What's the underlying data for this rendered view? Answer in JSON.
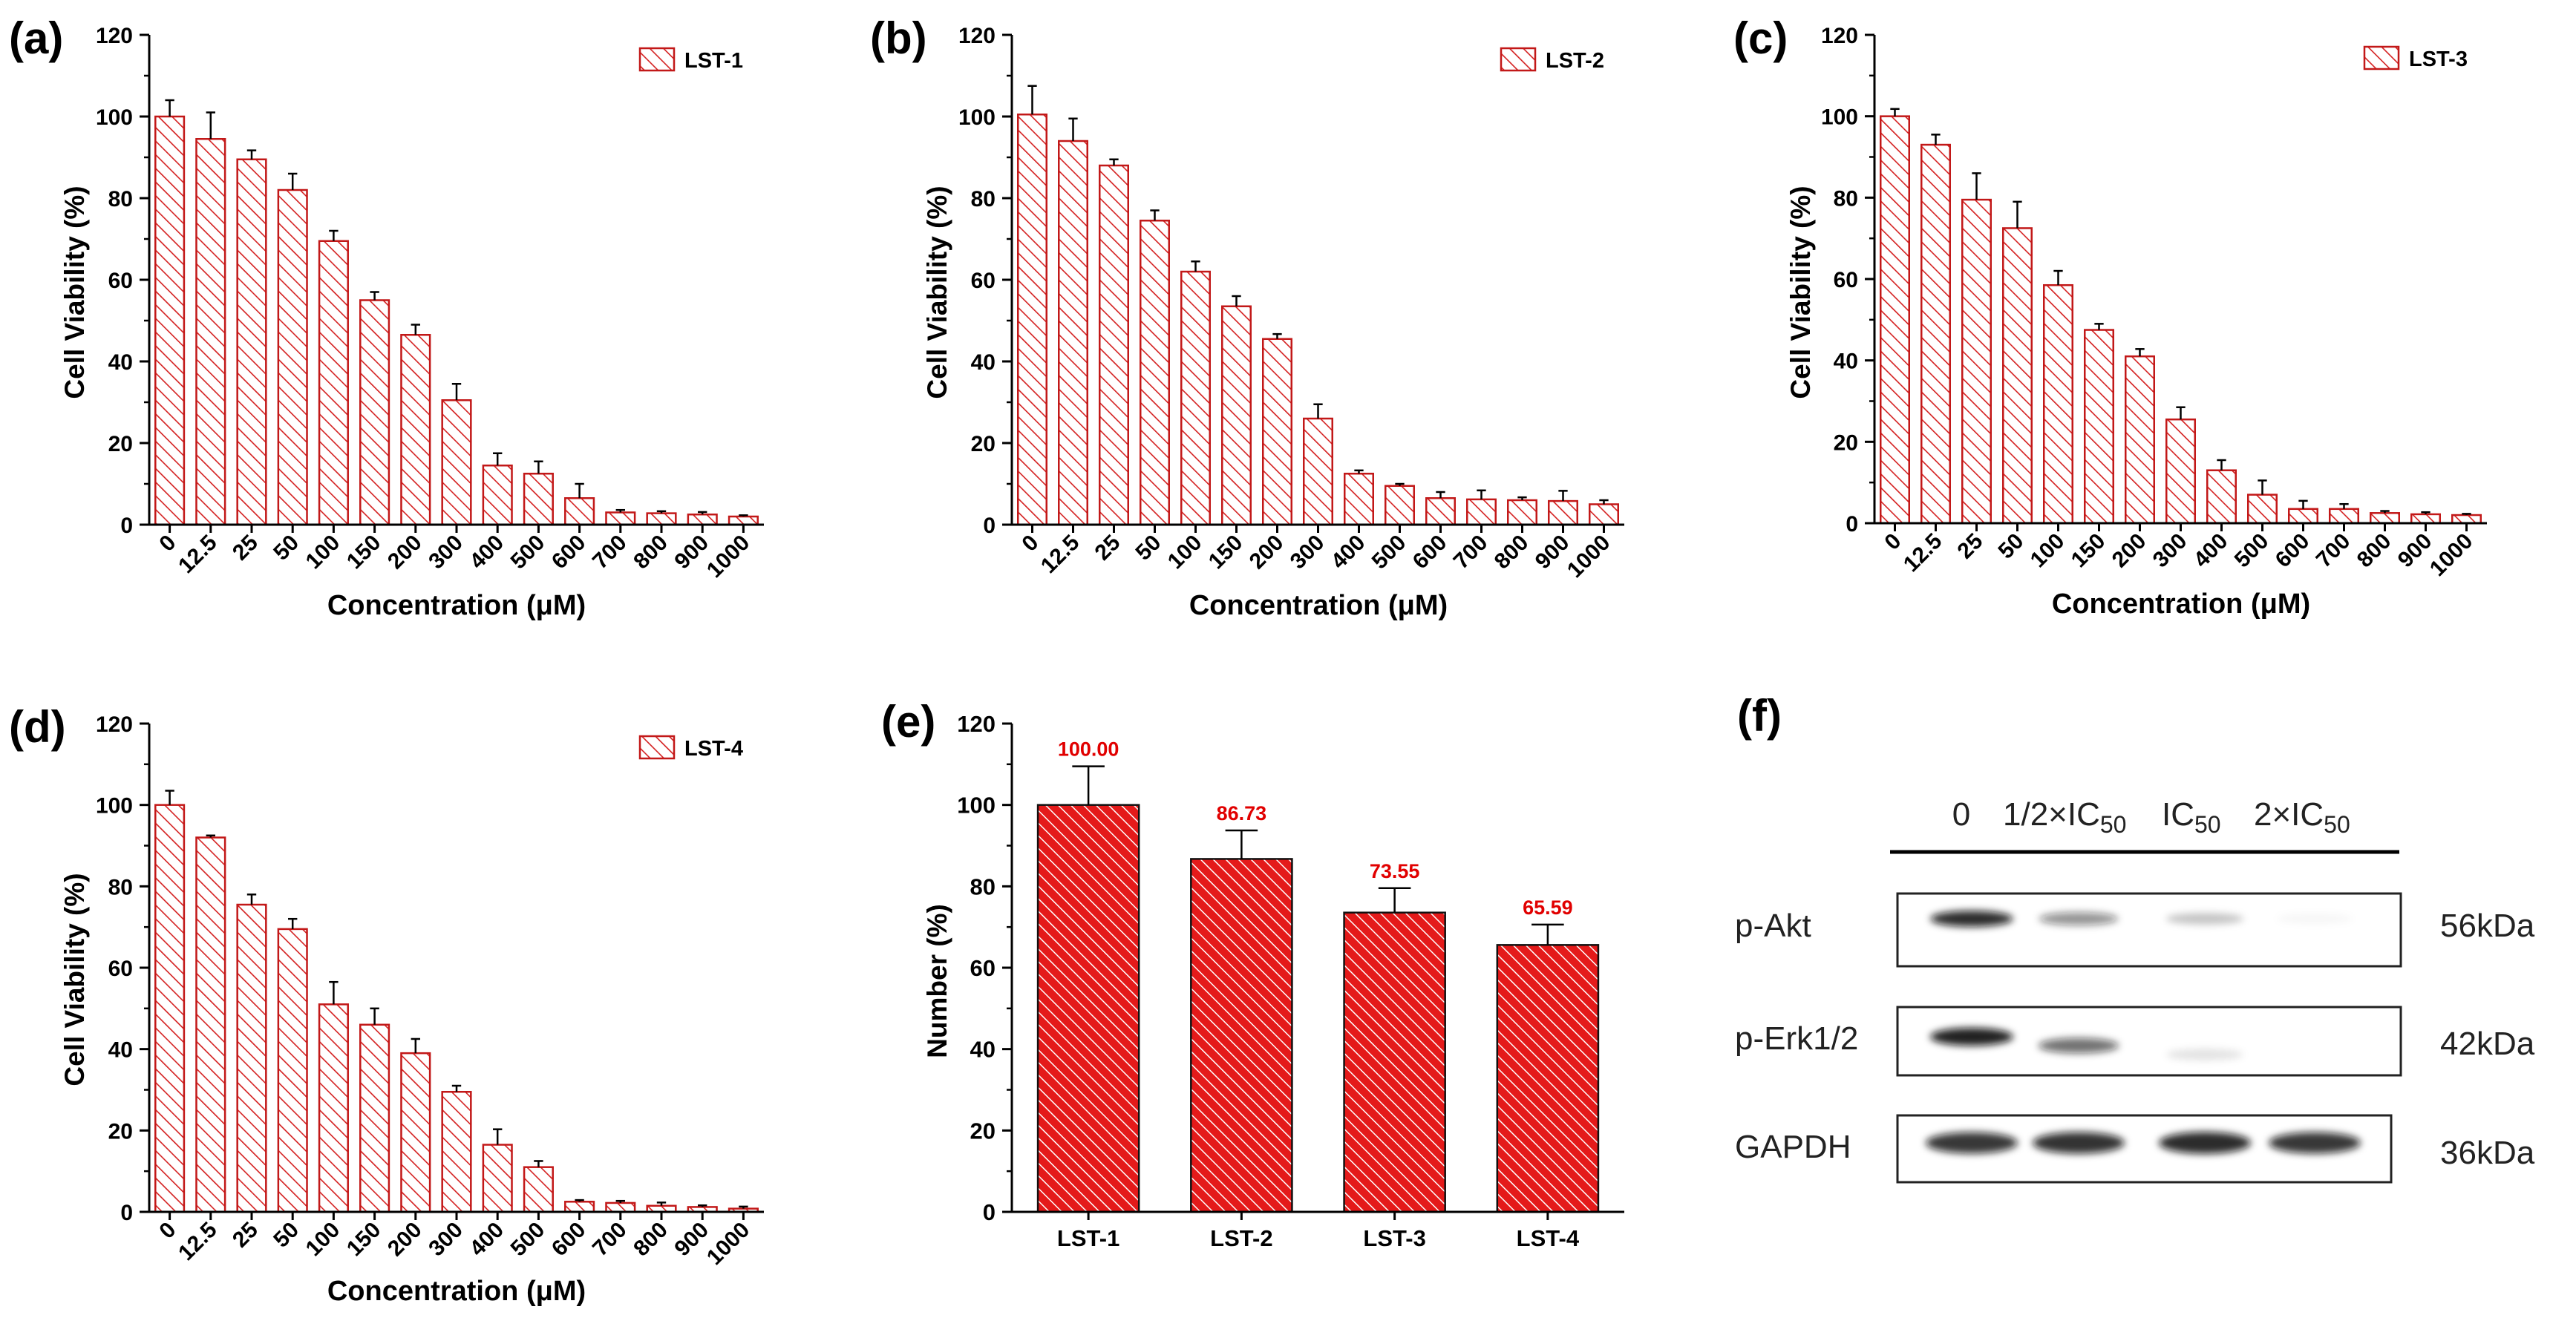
{
  "panels": {
    "a": "(a)",
    "b": "(b)",
    "c": "(c)",
    "d": "(d)",
    "e": "(e)",
    "f": "(f)"
  },
  "colors": {
    "hatch": "#d42020",
    "hatch_solid_bg": "#e41a1a",
    "value_label": "#e10000",
    "axis": "#000000"
  },
  "chart_data": [
    {
      "id": "a",
      "type": "bar",
      "legend": "LST-1",
      "legend_position": "top-right",
      "xlabel": "Concentration (μM)",
      "ylabel": "Cell Viability (%)",
      "ylim": [
        0,
        120
      ],
      "yticks": [
        "0",
        "20",
        "40",
        "60",
        "80",
        "100",
        "120"
      ],
      "categories": [
        "0",
        "12.5",
        "25",
        "50",
        "100",
        "150",
        "200",
        "300",
        "400",
        "500",
        "600",
        "700",
        "800",
        "900",
        "1000"
      ],
      "values": [
        100,
        94.5,
        89.5,
        82,
        69.5,
        55,
        46.5,
        30.5,
        14.5,
        12.5,
        6.5,
        3,
        2.8,
        2.5,
        2
      ],
      "errors": [
        4,
        6.5,
        2.2,
        4,
        2.5,
        2,
        2.5,
        4,
        3,
        3,
        3.5,
        0.6,
        0.5,
        0.6,
        0.3
      ]
    },
    {
      "id": "b",
      "type": "bar",
      "legend": "LST-2",
      "legend_position": "top-right",
      "xlabel": "Concentration (μM)",
      "ylabel": "Cell Viability (%)",
      "ylim": [
        0,
        120
      ],
      "yticks": [
        "0",
        "20",
        "40",
        "60",
        "80",
        "100",
        "120"
      ],
      "categories": [
        "0",
        "12.5",
        "25",
        "50",
        "100",
        "150",
        "200",
        "300",
        "400",
        "500",
        "600",
        "700",
        "800",
        "900",
        "1000"
      ],
      "values": [
        100.5,
        94,
        88,
        74.5,
        62,
        53.5,
        45.5,
        26,
        12.5,
        9.5,
        6.5,
        6.2,
        6,
        5.8,
        5
      ],
      "errors": [
        7,
        5.5,
        1.5,
        2.5,
        2.5,
        2.5,
        1.2,
        3.5,
        0.8,
        0.5,
        1.5,
        2.2,
        0.7,
        2.5,
        1
      ]
    },
    {
      "id": "c",
      "type": "bar",
      "legend": "LST-3",
      "legend_position": "top-right",
      "xlabel": "Concentration (μM)",
      "ylabel": "Cell Viability (%)",
      "ylim": [
        0,
        120
      ],
      "yticks": [
        "0",
        "20",
        "40",
        "60",
        "80",
        "100",
        "120"
      ],
      "categories": [
        "0",
        "12.5",
        "25",
        "50",
        "100",
        "150",
        "200",
        "300",
        "400",
        "500",
        "600",
        "700",
        "800",
        "900",
        "1000"
      ],
      "values": [
        100,
        93,
        79.5,
        72.5,
        58.5,
        47.5,
        41,
        25.5,
        13,
        7,
        3.5,
        3.5,
        2.5,
        2.2,
        2
      ],
      "errors": [
        1.8,
        2.5,
        6.5,
        6.5,
        3.5,
        1.5,
        1.8,
        3,
        2.5,
        3.5,
        2,
        1.2,
        0.5,
        0.5,
        0.3
      ]
    },
    {
      "id": "d",
      "type": "bar",
      "legend": "LST-4",
      "legend_position": "top-right",
      "xlabel": "Concentration (μM)",
      "ylabel": "Cell Viability (%)",
      "ylim": [
        0,
        120
      ],
      "yticks": [
        "0",
        "20",
        "40",
        "60",
        "80",
        "100",
        "120"
      ],
      "categories": [
        "0",
        "12.5",
        "25",
        "50",
        "100",
        "150",
        "200",
        "300",
        "400",
        "500",
        "600",
        "700",
        "800",
        "900",
        "1000"
      ],
      "values": [
        100,
        92,
        75.5,
        69.5,
        51,
        46,
        39,
        29.5,
        16.5,
        11,
        2.5,
        2.2,
        1.5,
        1.2,
        0.8
      ],
      "errors": [
        3.5,
        0.5,
        2.5,
        2.5,
        5.5,
        4,
        3.5,
        1.5,
        3.8,
        1.5,
        0.4,
        0.5,
        0.8,
        0.4,
        0.5
      ]
    },
    {
      "id": "e",
      "type": "bar",
      "legend": "",
      "xlabel": "",
      "ylabel": "Number (%)",
      "ylim": [
        0,
        120
      ],
      "yticks": [
        "0",
        "20",
        "40",
        "60",
        "80",
        "100",
        "120"
      ],
      "categories": [
        "LST-1",
        "LST-2",
        "LST-3",
        "LST-4"
      ],
      "values": [
        100,
        86.73,
        73.55,
        65.59
      ],
      "errors": [
        9.5,
        7,
        6,
        5
      ],
      "value_labels": [
        "100.00",
        "86.73",
        "73.55",
        "65.59"
      ]
    }
  ],
  "blot": {
    "columns": {
      "c0": "0",
      "c1_pre": "1/2×IC",
      "c1_sub": "50",
      "c2_pre": "IC",
      "c2_sub": "50",
      "c3_pre": "2×IC",
      "c3_sub": "50"
    },
    "rows": [
      {
        "label": "p-Akt",
        "mw": "56kDa",
        "intensities": [
          0.95,
          0.5,
          0.25,
          0.04
        ]
      },
      {
        "label": "p-Erk1/2",
        "mw": "42kDa",
        "intensities": [
          1.0,
          0.65,
          0.12,
          0.0
        ]
      },
      {
        "label": "GAPDH",
        "mw": "36kDa",
        "intensities": [
          0.9,
          0.92,
          0.95,
          0.9
        ]
      }
    ]
  }
}
